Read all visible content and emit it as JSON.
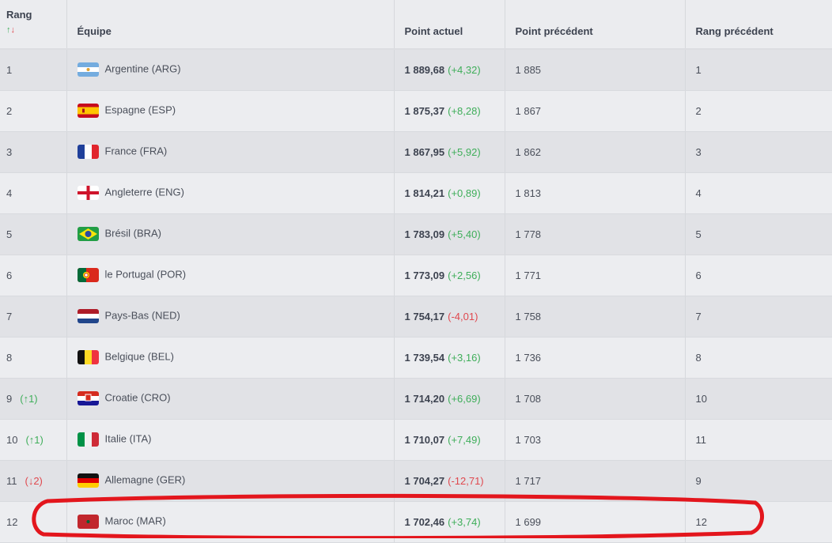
{
  "columns": {
    "rank": "Rang",
    "sort_up": "↑",
    "sort_down": "↓",
    "team": "Équipe",
    "points": "Point actuel",
    "prev_points": "Point précédent",
    "prev_rank": "Rang précédent"
  },
  "rows": [
    {
      "rank": "1",
      "move": "",
      "dir": "",
      "team": "Argentine (ARG)",
      "flag": "argentina",
      "points": "1 889,68",
      "change": "(+4,32)",
      "up": true,
      "prev_points": "1 885",
      "prev_rank": "1"
    },
    {
      "rank": "2",
      "move": "",
      "dir": "",
      "team": "Espagne (ESP)",
      "flag": "spain",
      "points": "1 875,37",
      "change": "(+8,28)",
      "up": true,
      "prev_points": "1 867",
      "prev_rank": "2"
    },
    {
      "rank": "3",
      "move": "",
      "dir": "",
      "team": "France (FRA)",
      "flag": "france",
      "points": "1 867,95",
      "change": "(+5,92)",
      "up": true,
      "prev_points": "1 862",
      "prev_rank": "3"
    },
    {
      "rank": "4",
      "move": "",
      "dir": "",
      "team": "Angleterre (ENG)",
      "flag": "england",
      "points": "1 814,21",
      "change": "(+0,89)",
      "up": true,
      "prev_points": "1 813",
      "prev_rank": "4"
    },
    {
      "rank": "5",
      "move": "",
      "dir": "",
      "team": "Brésil (BRA)",
      "flag": "brazil",
      "points": "1 783,09",
      "change": "(+5,40)",
      "up": true,
      "prev_points": "1 778",
      "prev_rank": "5"
    },
    {
      "rank": "6",
      "move": "",
      "dir": "",
      "team": "le Portugal (POR)",
      "flag": "portugal",
      "points": "1 773,09",
      "change": "(+2,56)",
      "up": true,
      "prev_points": "1 771",
      "prev_rank": "6"
    },
    {
      "rank": "7",
      "move": "",
      "dir": "",
      "team": "Pays-Bas (NED)",
      "flag": "netherlands",
      "points": "1 754,17",
      "change": "(-4,01)",
      "up": false,
      "prev_points": "1 758",
      "prev_rank": "7"
    },
    {
      "rank": "8",
      "move": "",
      "dir": "",
      "team": "Belgique (BEL)",
      "flag": "belgium",
      "points": "1 739,54",
      "change": "(+3,16)",
      "up": true,
      "prev_points": "1 736",
      "prev_rank": "8"
    },
    {
      "rank": "9",
      "move": "(↑1)",
      "dir": "up",
      "team": "Croatie (CRO)",
      "flag": "croatia",
      "points": "1 714,20",
      "change": "(+6,69)",
      "up": true,
      "prev_points": "1 708",
      "prev_rank": "10"
    },
    {
      "rank": "10",
      "move": "(↑1)",
      "dir": "up",
      "team": "Italie (ITA)",
      "flag": "italy",
      "points": "1 710,07",
      "change": "(+7,49)",
      "up": true,
      "prev_points": "1 703",
      "prev_rank": "11"
    },
    {
      "rank": "11",
      "move": "(↓2)",
      "dir": "down",
      "team": "Allemagne (GER)",
      "flag": "germany",
      "points": "1 704,27",
      "change": "(-12,71)",
      "up": false,
      "prev_points": "1 717",
      "prev_rank": "9"
    },
    {
      "rank": "12",
      "move": "",
      "dir": "",
      "team": "Maroc (MAR)",
      "flag": "morocco",
      "points": "1 702,46",
      "change": "(+3,74)",
      "up": true,
      "prev_points": "1 699",
      "prev_rank": "12"
    }
  ],
  "colors": {
    "up": "#3fae5a",
    "down": "#e0484e",
    "highlight": "#e3161d"
  }
}
